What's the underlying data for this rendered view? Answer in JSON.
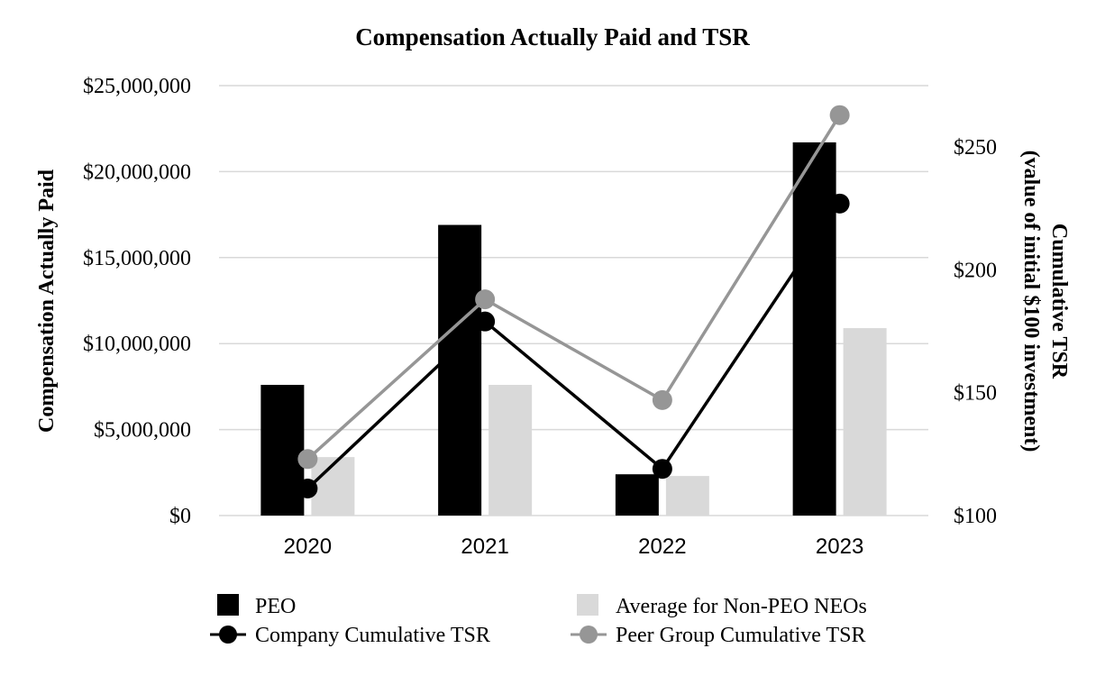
{
  "chart_data": {
    "type": "bar",
    "title": "Compensation Actually Paid and TSR",
    "categories": [
      "2020",
      "2021",
      "2022",
      "2023"
    ],
    "ylabel": "Compensation Actually Paid",
    "y2label_line1": "Cumulative TSR",
    "y2label_line2": "(value of initial $100 investment)",
    "ylim": [
      0,
      25000000
    ],
    "y2lim": [
      100,
      275
    ],
    "y_ticks": [
      "$0",
      "$5,000,000",
      "$10,000,000",
      "$15,000,000",
      "$20,000,000",
      "$25,000,000"
    ],
    "y_tick_values": [
      0,
      5000000,
      10000000,
      15000000,
      20000000,
      25000000
    ],
    "y2_ticks": [
      "$100",
      "$150",
      "$200",
      "$250"
    ],
    "y2_tick_values": [
      100,
      150,
      200,
      250
    ],
    "grid": true,
    "legend_position": "bottom",
    "bar_series": [
      {
        "name": "PEO",
        "color": "#000000",
        "values": [
          7600000,
          16900000,
          2400000,
          21700000
        ]
      },
      {
        "name": "Average for Non-PEO NEOs",
        "color": "#d9d9d9",
        "values": [
          3400000,
          7600000,
          2300000,
          10900000
        ]
      }
    ],
    "line_series": [
      {
        "name": "Company Cumulative TSR",
        "color": "#000000",
        "values": [
          111,
          179,
          119,
          227
        ]
      },
      {
        "name": "Peer Group Cumulative TSR",
        "color": "#969696",
        "values": [
          123,
          188,
          147,
          263
        ]
      }
    ]
  }
}
